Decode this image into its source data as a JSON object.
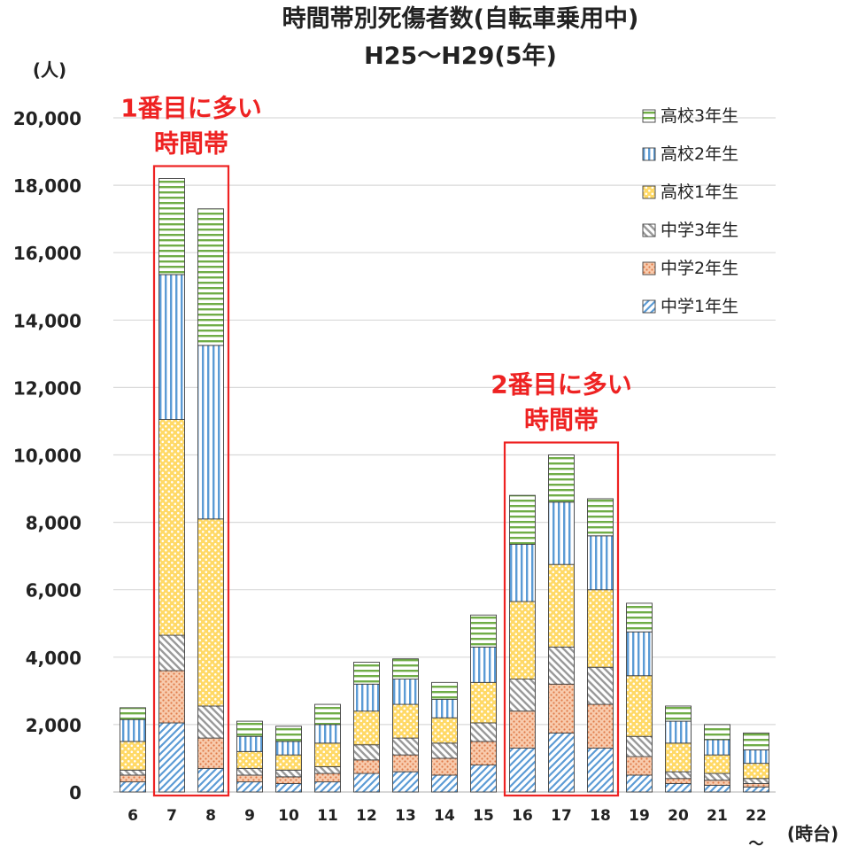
{
  "chart_data": {
    "type": "bar",
    "stacked": true,
    "title": "時間帯別死傷者数(自転車乗用中)",
    "subtitle": "H25～H29(5年)",
    "ylabel": "(人)",
    "xlabel": "(時台)",
    "ylim": [
      0,
      20000
    ],
    "yticks": [
      "0",
      "2,000",
      "4,000",
      "6,000",
      "8,000",
      "10,000",
      "12,000",
      "14,000",
      "16,000",
      "18,000",
      "20,000"
    ],
    "grid": true,
    "legend_position": "top-right",
    "categories": [
      "6",
      "7",
      "8",
      "9",
      "10",
      "11",
      "12",
      "13",
      "14",
      "15",
      "16",
      "17",
      "18",
      "19",
      "20",
      "21",
      "22"
    ],
    "category_suffix_last": "～",
    "series": [
      {
        "name": "中学1年生",
        "color": "#9dc3e6",
        "pattern": "diag-right",
        "values": [
          300,
          2050,
          700,
          300,
          250,
          300,
          550,
          600,
          500,
          800,
          1300,
          1750,
          1300,
          500,
          250,
          200,
          150
        ]
      },
      {
        "name": "中学2年生",
        "color": "#f4b183",
        "pattern": "dots",
        "values": [
          200,
          1550,
          900,
          200,
          200,
          250,
          400,
          500,
          500,
          700,
          1100,
          1450,
          1300,
          550,
          150,
          150,
          100
        ]
      },
      {
        "name": "中学3年生",
        "color": "#d9d9d9",
        "pattern": "diag-left",
        "values": [
          150,
          1050,
          950,
          200,
          200,
          200,
          450,
          500,
          450,
          550,
          950,
          1100,
          1100,
          600,
          200,
          200,
          150
        ]
      },
      {
        "name": "高校1年生",
        "color": "#ffd966",
        "pattern": "dots-yellow",
        "values": [
          850,
          6400,
          5550,
          500,
          450,
          700,
          1000,
          1000,
          750,
          1200,
          2300,
          2450,
          2300,
          1800,
          850,
          550,
          450
        ]
      },
      {
        "name": "高校2年生",
        "color": "#9dc3e6",
        "pattern": "vertical",
        "values": [
          650,
          4300,
          5150,
          450,
          400,
          550,
          800,
          750,
          550,
          1050,
          1700,
          1850,
          1600,
          1300,
          650,
          450,
          400
        ]
      },
      {
        "name": "高校3年生",
        "color": "#a9d18e",
        "pattern": "horizontal",
        "values": [
          350,
          2850,
          4050,
          450,
          450,
          600,
          650,
          600,
          500,
          950,
          1450,
          1400,
          1100,
          850,
          450,
          450,
          500
        ]
      }
    ],
    "highlights": [
      {
        "categories": [
          "7",
          "8"
        ],
        "label_line1": "1番目に多い",
        "label_line2": "時間帯"
      },
      {
        "categories": [
          "16",
          "17",
          "18"
        ],
        "label_line1": "2番目に多い",
        "label_line2": "時間帯"
      }
    ]
  }
}
